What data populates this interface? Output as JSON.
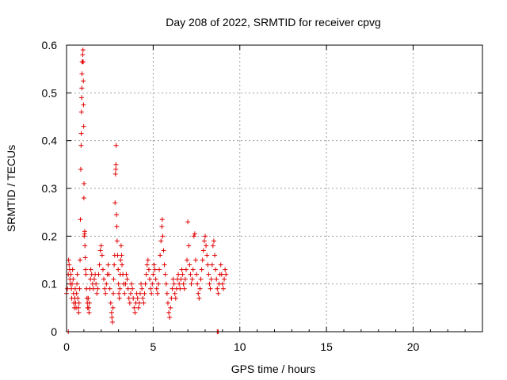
{
  "chart_data": {
    "type": "scatter",
    "title": "Day 208 of 2022, SRMTID for receiver cpvg",
    "xlabel": "GPS time / hours",
    "ylabel": "SRMTID / TECUs",
    "xlim": [
      0,
      24
    ],
    "ylim": [
      0,
      0.6
    ],
    "xticks": [
      0,
      5,
      10,
      15,
      20
    ],
    "yticks": [
      0,
      0.1,
      0.2,
      0.3,
      0.4,
      0.5,
      0.6
    ],
    "xtick_labels": [
      "0",
      "5",
      "10",
      "15",
      "20"
    ],
    "ytick_labels": [
      "0",
      "0.1",
      "0.2",
      "0.3",
      "0.4",
      "0.5",
      "0.6"
    ],
    "grid": true,
    "marker": "+",
    "color": "#e00000",
    "series": [
      {
        "name": "SRMTID",
        "points": [
          [
            0.0,
            0.08
          ],
          [
            0.05,
            0.09
          ],
          [
            0.1,
            0.12
          ],
          [
            0.12,
            0.15
          ],
          [
            0.15,
            0.14
          ],
          [
            0.18,
            0.13
          ],
          [
            0.2,
            0.11
          ],
          [
            0.22,
            0.1
          ],
          [
            0.25,
            0.12
          ],
          [
            0.28,
            0.09
          ],
          [
            0.3,
            0.07
          ],
          [
            0.32,
            0.1
          ],
          [
            0.35,
            0.13
          ],
          [
            0.38,
            0.11
          ],
          [
            0.4,
            0.08
          ],
          [
            0.42,
            0.06
          ],
          [
            0.45,
            0.05
          ],
          [
            0.48,
            0.07
          ],
          [
            0.5,
            0.09
          ],
          [
            0.52,
            0.06
          ],
          [
            0.55,
            0.05
          ],
          [
            0.58,
            0.08
          ],
          [
            0.6,
            0.1
          ],
          [
            0.62,
            0.12
          ],
          [
            0.65,
            0.07
          ],
          [
            0.68,
            0.05
          ],
          [
            0.7,
            0.04
          ],
          [
            0.72,
            0.06
          ],
          [
            0.75,
            0.09
          ],
          [
            0.78,
            0.15
          ],
          [
            0.8,
            0.235
          ],
          [
            0.82,
            0.34
          ],
          [
            0.84,
            0.39
          ],
          [
            0.85,
            0.415
          ],
          [
            0.86,
            0.46
          ],
          [
            0.87,
            0.49
          ],
          [
            0.88,
            0.51
          ],
          [
            0.89,
            0.54
          ],
          [
            0.9,
            0.565
          ],
          [
            0.92,
            0.565
          ],
          [
            0.93,
            0.58
          ],
          [
            0.95,
            0.59
          ],
          [
            0.96,
            0.565
          ],
          [
            0.97,
            0.525
          ],
          [
            0.98,
            0.475
          ],
          [
            0.99,
            0.43
          ],
          [
            1.0,
            0.28
          ],
          [
            1.01,
            0.31
          ],
          [
            1.02,
            0.2
          ],
          [
            1.04,
            0.205
          ],
          [
            1.05,
            0.21
          ],
          [
            1.06,
            0.18
          ],
          [
            1.08,
            0.155
          ],
          [
            1.1,
            0.13
          ],
          [
            1.12,
            0.12
          ],
          [
            1.15,
            0.09
          ],
          [
            1.18,
            0.07
          ],
          [
            1.2,
            0.06
          ],
          [
            1.22,
            0.05
          ],
          [
            1.25,
            0.07
          ],
          [
            1.28,
            0.05
          ],
          [
            1.3,
            0.04
          ],
          [
            1.32,
            0.06
          ],
          [
            1.35,
            0.09
          ],
          [
            1.38,
            0.11
          ],
          [
            1.4,
            0.13
          ],
          [
            1.45,
            0.12
          ],
          [
            1.5,
            0.1
          ],
          [
            1.55,
            0.09
          ],
          [
            1.6,
            0.11
          ],
          [
            1.65,
            0.12
          ],
          [
            1.7,
            0.1
          ],
          [
            1.75,
            0.08
          ],
          [
            1.8,
            0.09
          ],
          [
            1.85,
            0.12
          ],
          [
            1.9,
            0.14
          ],
          [
            1.95,
            0.17
          ],
          [
            2.0,
            0.18
          ],
          [
            2.05,
            0.16
          ],
          [
            2.1,
            0.13
          ],
          [
            2.15,
            0.11
          ],
          [
            2.2,
            0.09
          ],
          [
            2.25,
            0.08
          ],
          [
            2.3,
            0.1
          ],
          [
            2.35,
            0.12
          ],
          [
            2.4,
            0.14
          ],
          [
            2.45,
            0.12
          ],
          [
            2.5,
            0.09
          ],
          [
            2.55,
            0.06
          ],
          [
            2.6,
            0.04
          ],
          [
            2.62,
            0.03
          ],
          [
            2.65,
            0.02
          ],
          [
            2.68,
            0.05
          ],
          [
            2.7,
            0.08
          ],
          [
            2.72,
            0.11
          ],
          [
            2.75,
            0.14
          ],
          [
            2.78,
            0.16
          ],
          [
            2.8,
            0.27
          ],
          [
            2.82,
            0.33
          ],
          [
            2.84,
            0.34
          ],
          [
            2.85,
            0.35
          ],
          [
            2.86,
            0.39
          ],
          [
            2.88,
            0.245
          ],
          [
            2.9,
            0.22
          ],
          [
            2.92,
            0.19
          ],
          [
            2.95,
            0.16
          ],
          [
            2.98,
            0.13
          ],
          [
            3.0,
            0.1
          ],
          [
            3.02,
            0.08
          ],
          [
            3.05,
            0.07
          ],
          [
            3.08,
            0.09
          ],
          [
            3.1,
            0.12
          ],
          [
            3.12,
            0.15
          ],
          [
            3.15,
            0.18
          ],
          [
            3.18,
            0.16
          ],
          [
            3.2,
            0.14
          ],
          [
            3.25,
            0.12
          ],
          [
            3.3,
            0.1
          ],
          [
            3.35,
            0.08
          ],
          [
            3.4,
            0.1
          ],
          [
            3.45,
            0.12
          ],
          [
            3.5,
            0.11
          ],
          [
            3.55,
            0.09
          ],
          [
            3.6,
            0.07
          ],
          [
            3.65,
            0.06
          ],
          [
            3.7,
            0.08
          ],
          [
            3.75,
            0.1
          ],
          [
            3.8,
            0.09
          ],
          [
            3.85,
            0.07
          ],
          [
            3.9,
            0.05
          ],
          [
            3.95,
            0.04
          ],
          [
            4.0,
            0.06
          ],
          [
            4.05,
            0.08
          ],
          [
            4.1,
            0.07
          ],
          [
            4.15,
            0.05
          ],
          [
            4.2,
            0.06
          ],
          [
            4.25,
            0.08
          ],
          [
            4.3,
            0.1
          ],
          [
            4.35,
            0.09
          ],
          [
            4.4,
            0.07
          ],
          [
            4.45,
            0.06
          ],
          [
            4.5,
            0.08
          ],
          [
            4.55,
            0.1
          ],
          [
            4.6,
            0.12
          ],
          [
            4.65,
            0.14
          ],
          [
            4.7,
            0.15
          ],
          [
            4.75,
            0.13
          ],
          [
            4.8,
            0.11
          ],
          [
            4.85,
            0.09
          ],
          [
            4.9,
            0.08
          ],
          [
            4.95,
            0.1
          ],
          [
            5.0,
            0.12
          ],
          [
            5.05,
            0.14
          ],
          [
            5.1,
            0.13
          ],
          [
            5.15,
            0.11
          ],
          [
            5.2,
            0.09
          ],
          [
            5.25,
            0.08
          ],
          [
            5.3,
            0.1
          ],
          [
            5.35,
            0.13
          ],
          [
            5.4,
            0.16
          ],
          [
            5.45,
            0.19
          ],
          [
            5.5,
            0.22
          ],
          [
            5.52,
            0.235
          ],
          [
            5.55,
            0.2
          ],
          [
            5.6,
            0.17
          ],
          [
            5.65,
            0.14
          ],
          [
            5.7,
            0.12
          ],
          [
            5.75,
            0.1
          ],
          [
            5.8,
            0.08
          ],
          [
            5.85,
            0.06
          ],
          [
            5.9,
            0.04
          ],
          [
            5.95,
            0.03
          ],
          [
            6.0,
            0.05
          ],
          [
            6.05,
            0.07
          ],
          [
            6.1,
            0.09
          ],
          [
            6.15,
            0.11
          ],
          [
            6.2,
            0.1
          ],
          [
            6.25,
            0.08
          ],
          [
            6.3,
            0.07
          ],
          [
            6.35,
            0.09
          ],
          [
            6.4,
            0.11
          ],
          [
            6.45,
            0.12
          ],
          [
            6.5,
            0.1
          ],
          [
            6.55,
            0.09
          ],
          [
            6.6,
            0.11
          ],
          [
            6.65,
            0.13
          ],
          [
            6.7,
            0.12
          ],
          [
            6.75,
            0.1
          ],
          [
            6.8,
            0.09
          ],
          [
            6.85,
            0.11
          ],
          [
            6.9,
            0.13
          ],
          [
            6.95,
            0.15
          ],
          [
            7.0,
            0.23
          ],
          [
            7.05,
            0.18
          ],
          [
            7.1,
            0.14
          ],
          [
            7.15,
            0.12
          ],
          [
            7.2,
            0.1
          ],
          [
            7.25,
            0.11
          ],
          [
            7.3,
            0.13
          ],
          [
            7.35,
            0.2
          ],
          [
            7.4,
            0.205
          ],
          [
            7.45,
            0.15
          ],
          [
            7.5,
            0.12
          ],
          [
            7.55,
            0.1
          ],
          [
            7.6,
            0.08
          ],
          [
            7.65,
            0.07
          ],
          [
            7.7,
            0.09
          ],
          [
            7.75,
            0.11
          ],
          [
            7.8,
            0.13
          ],
          [
            7.85,
            0.15
          ],
          [
            7.9,
            0.17
          ],
          [
            7.95,
            0.19
          ],
          [
            8.0,
            0.2
          ],
          [
            8.05,
            0.18
          ],
          [
            8.1,
            0.16
          ],
          [
            8.15,
            0.14
          ],
          [
            8.2,
            0.12
          ],
          [
            8.25,
            0.1
          ],
          [
            8.3,
            0.09
          ],
          [
            8.35,
            0.11
          ],
          [
            8.4,
            0.14
          ],
          [
            8.45,
            0.18
          ],
          [
            8.5,
            0.19
          ],
          [
            8.55,
            0.16
          ],
          [
            8.6,
            0.13
          ],
          [
            8.65,
            0.11
          ],
          [
            8.7,
            0.09
          ],
          [
            8.75,
            0.08
          ],
          [
            8.8,
            0.1
          ],
          [
            8.85,
            0.12
          ],
          [
            8.9,
            0.14
          ],
          [
            8.95,
            0.12
          ],
          [
            9.0,
            0.1
          ],
          [
            9.05,
            0.09
          ],
          [
            9.1,
            0.11
          ],
          [
            9.15,
            0.13
          ],
          [
            9.2,
            0.12
          ],
          [
            0.1,
            0.0
          ],
          [
            8.7,
            0.0
          ],
          [
            8.75,
            0.0
          ]
        ]
      }
    ]
  }
}
